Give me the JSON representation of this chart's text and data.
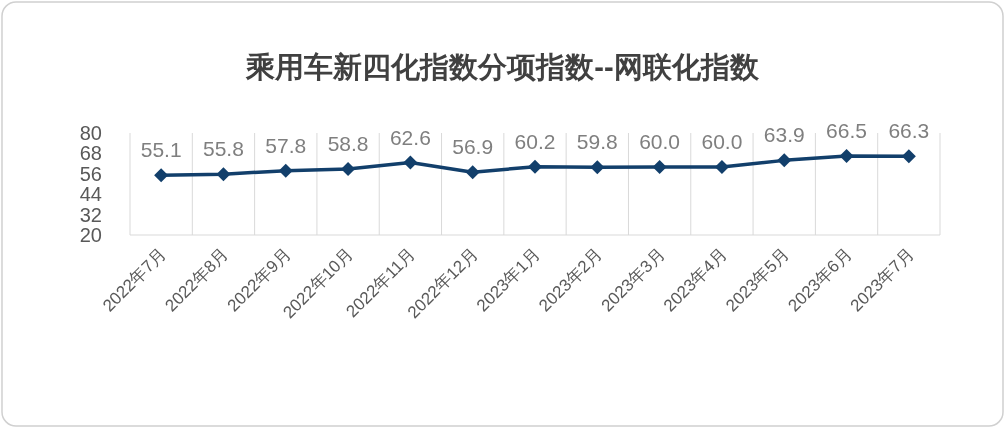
{
  "chart_data": {
    "type": "line",
    "title": "乘用车新四化指数分项指数--网联化指数",
    "categories": [
      "2022年7月",
      "2022年8月",
      "2022年9月",
      "2022年10月",
      "2022年11月",
      "2022年12月",
      "2023年1月",
      "2023年2月",
      "2023年3月",
      "2023年4月",
      "2023年5月",
      "2023年6月",
      "2023年7月"
    ],
    "series": [
      {
        "color": "#123f6b",
        "values": [
          55.1,
          55.8,
          57.8,
          58.8,
          62.6,
          56.9,
          60.2,
          59.8,
          60.0,
          60.0,
          63.9,
          66.5,
          66.3
        ]
      }
    ],
    "value_labels": [
      "55.1",
      "55.8",
      "57.8",
      "58.8",
      "62.6",
      "56.9",
      "60.2",
      "59.8",
      "60.0",
      "60.0",
      "63.9",
      "66.5",
      "66.3"
    ],
    "ylim": [
      20,
      80
    ],
    "yticks": [
      20,
      32,
      44,
      56,
      68,
      80
    ],
    "grid": "x",
    "marker": "diamond",
    "line_style": "solid"
  }
}
